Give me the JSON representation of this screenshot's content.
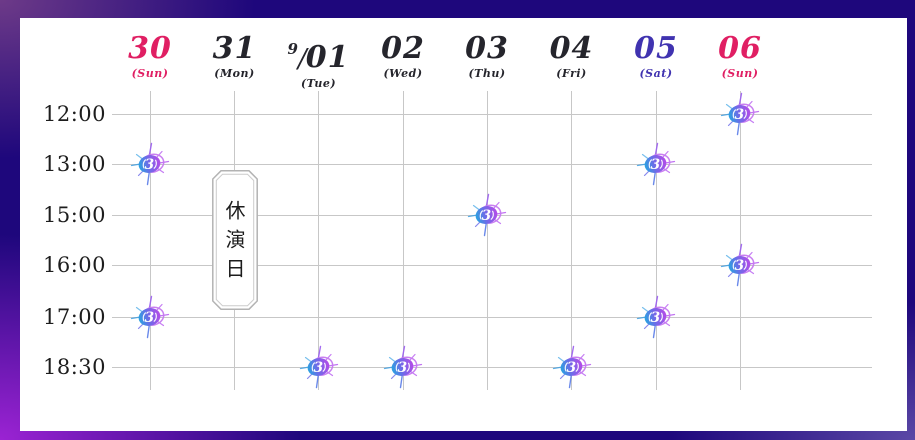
{
  "schedule": {
    "dates": [
      {
        "day": "30",
        "weekday": "(Sun)",
        "type": "sun"
      },
      {
        "day": "31",
        "weekday": "(Mon)",
        "type": "wk"
      },
      {
        "day": "01",
        "weekday": "(Tue)",
        "type": "wk",
        "month_prefix": "9/"
      },
      {
        "day": "02",
        "weekday": "(Wed)",
        "type": "wk"
      },
      {
        "day": "03",
        "weekday": "(Thu)",
        "type": "wk"
      },
      {
        "day": "04",
        "weekday": "(Fri)",
        "type": "sat2",
        "type_fix": "wk"
      },
      {
        "day": "05",
        "weekday": "(Sat)",
        "type": "sat"
      },
      {
        "day": "06",
        "weekday": "(Sun)",
        "type": "sun"
      }
    ],
    "times": [
      "12:00",
      "13:00",
      "15:00",
      "16:00",
      "17:00",
      "18:30"
    ],
    "performances": [
      {
        "date": "06",
        "time": "12:00"
      },
      {
        "date": "30",
        "time": "13:00"
      },
      {
        "date": "05",
        "time": "13:00"
      },
      {
        "date": "03",
        "time": "15:00"
      },
      {
        "date": "06",
        "time": "16:00"
      },
      {
        "date": "30",
        "time": "17:00"
      },
      {
        "date": "05",
        "time": "17:00"
      },
      {
        "date": "01",
        "time": "18:30"
      },
      {
        "date": "02",
        "time": "18:30"
      },
      {
        "date": "04",
        "time": "18:30"
      }
    ],
    "closed": {
      "date": "31",
      "label": "休演日"
    },
    "marker_glyph": "3",
    "colors": {
      "sunday": "#e01f63",
      "saturday": "#4033b0",
      "weekday": "#25252c",
      "grid_line": "#c7c7c7",
      "marker_blue": "#29a3e0",
      "marker_purple": "#b44ce8",
      "frame_indigo": "#1e077c",
      "frame_violet": "#9b23d3"
    }
  }
}
